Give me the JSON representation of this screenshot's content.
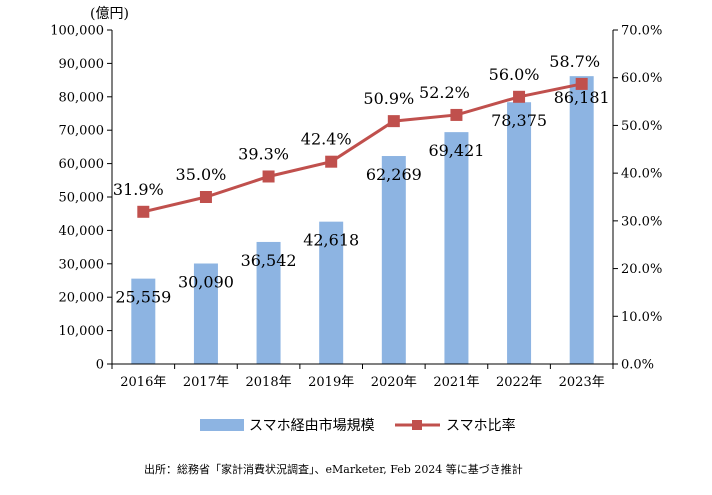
{
  "chart_data": {
    "type": "bar",
    "categories": [
      "2016年",
      "2017年",
      "2018年",
      "2019年",
      "2020年",
      "2021年",
      "2022年",
      "2023年"
    ],
    "series": [
      {
        "name": "スマホ経由市場規模",
        "type": "bar",
        "axis": "left",
        "values": [
          25559,
          30090,
          36542,
          42618,
          62269,
          69421,
          78375,
          86181
        ],
        "labels": [
          "25,559",
          "30,090",
          "36,542",
          "42,618",
          "62,269",
          "69,421",
          "78,375",
          "86,181"
        ],
        "color": "#8db4e2"
      },
      {
        "name": "スマホ比率",
        "type": "line",
        "axis": "right",
        "values": [
          31.9,
          35.0,
          39.3,
          42.4,
          50.9,
          52.2,
          56.0,
          58.7
        ],
        "labels": [
          "31.9%",
          "35.0%",
          "39.3%",
          "42.4%",
          "50.9%",
          "52.2%",
          "56.0%",
          "58.7%"
        ],
        "color": "#c0504d"
      }
    ],
    "y_left": {
      "unit": "(億円)",
      "ylim": [
        0,
        100000
      ],
      "ticks": [
        "0",
        "10,000",
        "20,000",
        "30,000",
        "40,000",
        "50,000",
        "60,000",
        "70,000",
        "80,000",
        "90,000",
        "100,000"
      ]
    },
    "y_right": {
      "ylim": [
        0,
        70
      ],
      "ticks": [
        "0.0%",
        "10.0%",
        "20.0%",
        "30.0%",
        "40.0%",
        "50.0%",
        "60.0%",
        "70.0%"
      ]
    },
    "grid": false,
    "legend_position": "bottom",
    "source": "出所：総務省「家計消費状況調査」、eMarketer, Feb 2024 等に基づき推計"
  }
}
